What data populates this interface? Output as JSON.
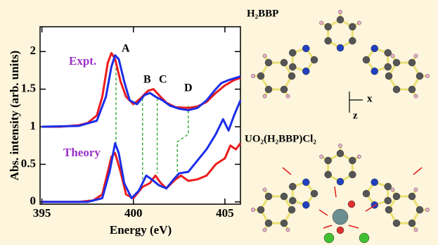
{
  "chart_data": {
    "type": "line",
    "xlabel": "Energy (eV)",
    "ylabel": "Abs. intensity (arb. units)",
    "xlim": [
      394.9,
      405.85
    ],
    "ylim": [
      -0.03,
      2.33
    ],
    "xticks": [
      395,
      400,
      405
    ],
    "yticks": [
      0,
      0.5,
      1,
      1.5,
      2
    ],
    "annotations": [
      "Expt.",
      "Theory",
      "A",
      "B",
      "C",
      "D"
    ],
    "series": [
      {
        "color": "#ee1c1c",
        "x": [
          395,
          396,
          397,
          397.5,
          398,
          398.3,
          398.6,
          398.8,
          399.0,
          399.3,
          399.6,
          400,
          400.4,
          400.8,
          401.1,
          401.4,
          401.8,
          402.3,
          403,
          403.5,
          404,
          404.5,
          405,
          405.5,
          405.85
        ],
        "values": [
          1.0,
          1.0,
          1.02,
          1.05,
          1.15,
          1.4,
          1.85,
          1.98,
          1.9,
          1.6,
          1.4,
          1.3,
          1.38,
          1.48,
          1.5,
          1.42,
          1.32,
          1.26,
          1.25,
          1.27,
          1.33,
          1.45,
          1.55,
          1.62,
          1.65
        ]
      },
      {
        "color": "#1c2ee8",
        "x": [
          395,
          397,
          398,
          398.5,
          398.8,
          399.0,
          399.2,
          399.5,
          399.8,
          400.2,
          400.6,
          400.9,
          401.2,
          401.6,
          402,
          402.5,
          403,
          403.5,
          404,
          404.5,
          404.8,
          405.2,
          405.6,
          405.85
        ],
        "values": [
          1.0,
          1.01,
          1.08,
          1.4,
          1.8,
          1.95,
          1.9,
          1.6,
          1.35,
          1.3,
          1.42,
          1.45,
          1.4,
          1.35,
          1.28,
          1.24,
          1.22,
          1.25,
          1.35,
          1.5,
          1.58,
          1.62,
          1.65,
          1.67
        ]
      },
      {
        "color": "#ee1c1c",
        "x": [
          395,
          397,
          397.8,
          398.3,
          398.6,
          398.8,
          399,
          399.3,
          399.6,
          400,
          400.5,
          400.9,
          401.2,
          401.5,
          401.8,
          402.3,
          402.6,
          403,
          403.5,
          404,
          404.5,
          405,
          405.3,
          405.6,
          405.85
        ],
        "values": [
          0,
          0,
          0.02,
          0.1,
          0.4,
          0.6,
          0.65,
          0.4,
          0.1,
          0.05,
          0.2,
          0.25,
          0.35,
          0.25,
          0.18,
          0.3,
          0.35,
          0.28,
          0.3,
          0.35,
          0.5,
          0.58,
          0.75,
          0.7,
          0.78
        ]
      },
      {
        "color": "#1c2ee8",
        "x": [
          395,
          397.5,
          398.3,
          398.7,
          399.0,
          399.2,
          399.5,
          399.9,
          400.3,
          400.7,
          401.0,
          401.4,
          401.8,
          402.2,
          402.5,
          403,
          403.5,
          404,
          404.5,
          404.9,
          405.2,
          405.5,
          405.85
        ],
        "values": [
          0,
          0,
          0.05,
          0.4,
          0.78,
          0.65,
          0.25,
          0.05,
          0.15,
          0.35,
          0.3,
          0.22,
          0.18,
          0.3,
          0.38,
          0.4,
          0.55,
          0.7,
          0.9,
          1.1,
          0.95,
          1.15,
          1.35
        ]
      }
    ],
    "guides": [
      {
        "x": [
          399.05,
          399.05
        ],
        "y": [
          1.85,
          0.72
        ]
      },
      {
        "x": [
          400.5,
          400.5
        ],
        "y": [
          1.38,
          0.3
        ]
      },
      {
        "x": [
          401.3,
          401.3
        ],
        "y": [
          1.38,
          0.38
        ]
      },
      {
        "x": [
          403.0,
          403.0,
          402.4,
          402.4
        ],
        "y": [
          1.28,
          0.9,
          0.8,
          0.3
        ]
      }
    ]
  },
  "molecules": {
    "top_label": "H₂BBP",
    "bottom_label": "UO₂(H₂BBP)Cl₂",
    "axis_x": "x",
    "axis_z": "z"
  }
}
